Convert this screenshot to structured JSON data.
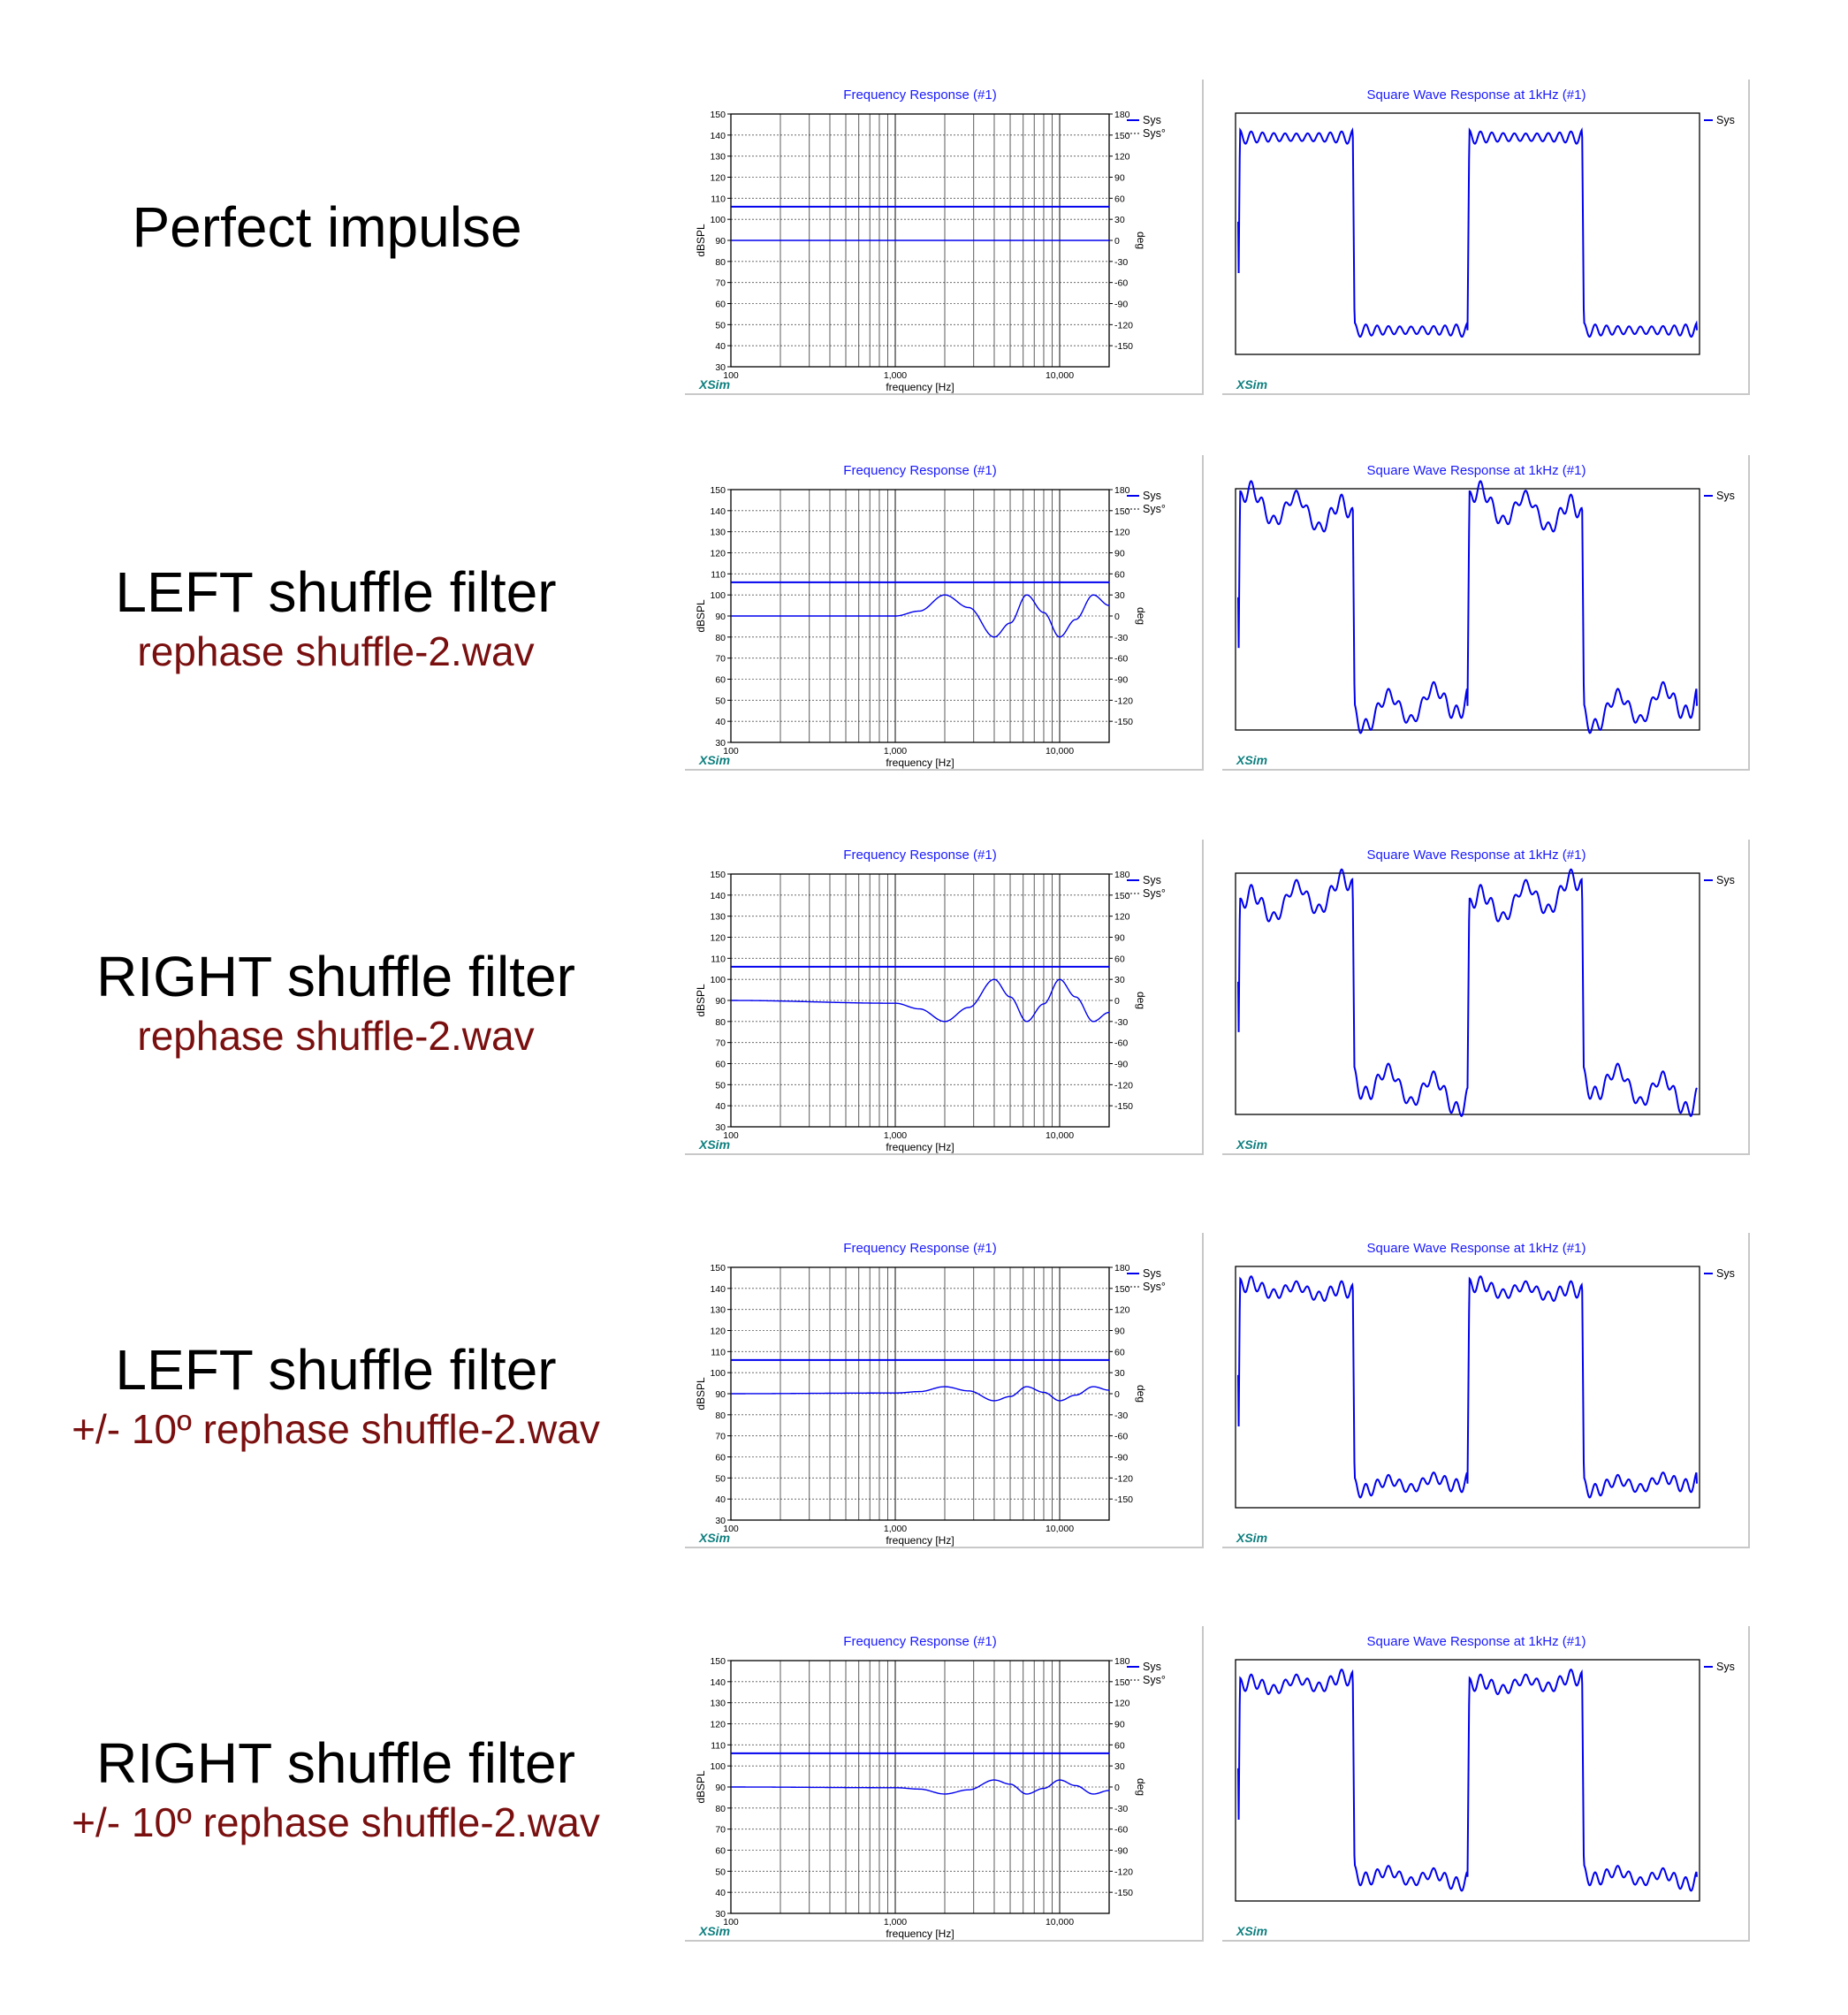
{
  "freq_panel": {
    "title": "Frequency Response (#1)",
    "xlabel": "frequency [Hz]",
    "ylabel": "dBSPL",
    "ylabel_right": "deg",
    "brand": "XSim",
    "legend": [
      "Sys",
      "Sys°"
    ]
  },
  "square_panel": {
    "title": "Square Wave Response at 1kHz (#1)",
    "brand": "XSim",
    "legend": [
      "Sys"
    ]
  },
  "colors": {
    "trace": "#0000ee",
    "title_text": "#1a1aff",
    "subtitle": "#7a0f0f",
    "brand": "#0f7f7f",
    "grid": "#000000"
  },
  "rows": [
    {
      "title": "Perfect impulse",
      "subtitle": ""
    },
    {
      "title": "LEFT shuffle filter",
      "subtitle": "rephase shuffle-2.wav"
    },
    {
      "title": "RIGHT shuffle filter",
      "subtitle": "rephase shuffle-2.wav"
    },
    {
      "title": "LEFT shuffle filter",
      "subtitle": "+/- 10º  rephase shuffle-2.wav"
    },
    {
      "title": "RIGHT shuffle filter",
      "subtitle": "+/- 10º  rephase shuffle-2.wav"
    }
  ],
  "chart_data": [
    {
      "type": "line",
      "title": "Frequency Response (#1)",
      "xlabel": "frequency [Hz]",
      "ylabel": "dBSPL",
      "y2label": "deg",
      "xscale": "log",
      "xlim": [
        100,
        20000
      ],
      "ylim": [
        30,
        150
      ],
      "y2lim": [
        -180,
        180
      ],
      "x_ticks": [
        "100",
        "1,000",
        "10,000"
      ],
      "y_ticks": [
        "150",
        "140",
        "130",
        "120",
        "110",
        "100",
        "90",
        "80",
        "70",
        "60",
        "50",
        "40",
        "30"
      ],
      "y2_ticks": [
        "180",
        "150",
        "120",
        "90",
        "60",
        "30",
        "0",
        "-30",
        "-60",
        "-90",
        "-120",
        "-150"
      ],
      "grid": true,
      "legend_position": "top-right",
      "panels": [
        {
          "name": "Perfect impulse",
          "magnitude_db": 106,
          "phase_deg": [
            [
              100,
              0
            ],
            [
              1000,
              0
            ],
            [
              2000,
              0
            ],
            [
              4000,
              0
            ],
            [
              6300,
              0
            ],
            [
              10000,
              0
            ],
            [
              20000,
              0
            ]
          ]
        },
        {
          "name": "LEFT shuffle filter",
          "magnitude_db": 106,
          "phase_deg": [
            [
              100,
              0
            ],
            [
              1000,
              0
            ],
            [
              1400,
              7
            ],
            [
              2000,
              30
            ],
            [
              2800,
              12
            ],
            [
              4000,
              -30
            ],
            [
              5000,
              -10
            ],
            [
              6300,
              30
            ],
            [
              8000,
              5
            ],
            [
              10000,
              -30
            ],
            [
              12500,
              -5
            ],
            [
              16000,
              30
            ],
            [
              20000,
              15
            ]
          ]
        },
        {
          "name": "RIGHT shuffle filter",
          "magnitude_db": 106,
          "phase_deg": [
            [
              100,
              0
            ],
            [
              1000,
              -4
            ],
            [
              1400,
              -12
            ],
            [
              2000,
              -30
            ],
            [
              2800,
              -10
            ],
            [
              4000,
              30
            ],
            [
              5000,
              5
            ],
            [
              6300,
              -30
            ],
            [
              8000,
              -5
            ],
            [
              10000,
              30
            ],
            [
              12500,
              5
            ],
            [
              16000,
              -30
            ],
            [
              20000,
              -17
            ]
          ]
        },
        {
          "name": "LEFT shuffle filter +/- 10º",
          "magnitude_db": 106,
          "phase_deg": [
            [
              100,
              0
            ],
            [
              1000,
              1
            ],
            [
              1400,
              3
            ],
            [
              2000,
              10
            ],
            [
              2800,
              4
            ],
            [
              4000,
              -10
            ],
            [
              5000,
              -4
            ],
            [
              6300,
              10
            ],
            [
              8000,
              2
            ],
            [
              10000,
              -10
            ],
            [
              12500,
              -2
            ],
            [
              16000,
              10
            ],
            [
              20000,
              5
            ]
          ]
        },
        {
          "name": "RIGHT shuffle filter +/- 10º",
          "magnitude_db": 106,
          "phase_deg": [
            [
              100,
              0
            ],
            [
              1000,
              -1
            ],
            [
              1400,
              -3
            ],
            [
              2000,
              -10
            ],
            [
              2800,
              -4
            ],
            [
              4000,
              10
            ],
            [
              5000,
              4
            ],
            [
              6300,
              -10
            ],
            [
              8000,
              -2
            ],
            [
              10000,
              10
            ],
            [
              12500,
              2
            ],
            [
              16000,
              -10
            ],
            [
              20000,
              -5
            ]
          ]
        }
      ]
    },
    {
      "type": "line",
      "title": "Square Wave Response at 1kHz (#1)",
      "legend": [
        "Sys"
      ],
      "legend_position": "top-right",
      "grid": false,
      "periods_shown": 2,
      "panels": [
        {
          "name": "Perfect impulse",
          "high_level": 0.8,
          "low_level": -0.8,
          "ringing": 0.1,
          "tilt": 0.0,
          "wobble": 0.0
        },
        {
          "name": "LEFT shuffle filter",
          "high_level": 0.82,
          "low_level": -0.8,
          "ringing": 0.14,
          "tilt": -0.14,
          "wobble": 0.12
        },
        {
          "name": "RIGHT shuffle filter",
          "high_level": 0.78,
          "low_level": -0.78,
          "ringing": 0.14,
          "tilt": 0.16,
          "wobble": 0.12
        },
        {
          "name": "LEFT shuffle filter +/- 10º",
          "high_level": 0.8,
          "low_level": -0.8,
          "ringing": 0.12,
          "tilt": -0.05,
          "wobble": 0.04
        },
        {
          "name": "RIGHT shuffle filter +/- 10º",
          "high_level": 0.8,
          "low_level": -0.8,
          "ringing": 0.12,
          "tilt": 0.05,
          "wobble": 0.04
        }
      ]
    }
  ]
}
